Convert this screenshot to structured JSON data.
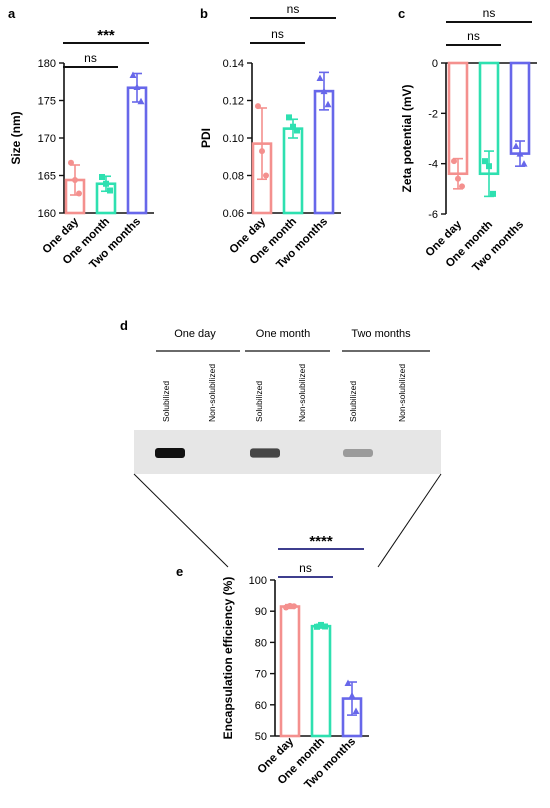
{
  "panels": {
    "a": "a",
    "b": "b",
    "c": "c",
    "d": "d",
    "e": "e"
  },
  "colors": {
    "one_day": "#f4908e",
    "one_month": "#2ee0b0",
    "two_months": "#6767ea",
    "sig_bar_e": "#3e3e8e"
  },
  "chart_data": [
    {
      "id": "a",
      "type": "bar",
      "categories": [
        "One day",
        "One month",
        "Two months"
      ],
      "values": [
        164.4,
        163.9,
        176.7
      ],
      "errors": [
        2.0,
        1.0,
        1.9
      ],
      "points": [
        [
          166.7,
          164.4,
          162.6
        ],
        [
          164.8,
          163.9,
          163.0
        ],
        [
          178.4,
          176.8,
          174.9
        ]
      ],
      "ylabel": "Size (nm)",
      "ylim": [
        160,
        180
      ],
      "yticks": [
        160,
        165,
        170,
        175,
        180
      ],
      "significance": [
        {
          "label": "ns",
          "from": 0,
          "to": 1,
          "bold": false
        },
        {
          "label": "***",
          "from": 0,
          "to": 2,
          "bold": true
        }
      ]
    },
    {
      "id": "b",
      "type": "bar",
      "categories": [
        "One day",
        "One month",
        "Two months"
      ],
      "values": [
        0.097,
        0.105,
        0.125
      ],
      "errors": [
        0.019,
        0.005,
        0.01
      ],
      "points": [
        [
          0.117,
          0.093,
          0.08
        ],
        [
          0.111,
          0.106,
          0.104
        ],
        [
          0.132,
          0.125,
          0.118
        ]
      ],
      "ylabel": "PDI",
      "ylim": [
        0.06,
        0.14
      ],
      "yticks": [
        0.06,
        0.08,
        0.1,
        0.12,
        0.14
      ],
      "significance": [
        {
          "label": "ns",
          "from": 0,
          "to": 1,
          "bold": false
        },
        {
          "label": "ns",
          "from": 0,
          "to": 2,
          "bold": false
        }
      ]
    },
    {
      "id": "c",
      "type": "bar",
      "categories": [
        "One day",
        "One month",
        "Two months"
      ],
      "values": [
        -4.4,
        -4.4,
        -3.6
      ],
      "errors": [
        0.6,
        0.9,
        0.5
      ],
      "points": [
        [
          -3.9,
          -4.6,
          -4.9
        ],
        [
          -3.9,
          -4.1,
          -5.2
        ],
        [
          -3.3,
          -3.6,
          -4.0
        ]
      ],
      "ylabel": "Zeta potential (mV)",
      "ylim": [
        -6,
        0
      ],
      "yticks": [
        0,
        -2,
        -4,
        -6
      ],
      "significance": [
        {
          "label": "ns",
          "from": 0,
          "to": 1,
          "bold": false
        },
        {
          "label": "ns",
          "from": 0,
          "to": 2,
          "bold": false
        }
      ]
    },
    {
      "id": "e",
      "type": "bar",
      "categories": [
        "One day",
        "One month",
        "Two months"
      ],
      "values": [
        91.5,
        85.2,
        62.0
      ],
      "errors": [
        0.6,
        0.6,
        5.3
      ],
      "points": [
        [
          91.2,
          91.7,
          91.6
        ],
        [
          85.0,
          85.6,
          85.1
        ],
        [
          67.0,
          63.0,
          58.0
        ]
      ],
      "ylabel": "Encapsulation efficiency (%)",
      "ylim": [
        50,
        100
      ],
      "yticks": [
        50,
        60,
        70,
        80,
        90,
        100
      ],
      "significance": [
        {
          "label": "ns",
          "from": 0,
          "to": 1,
          "bold": false
        },
        {
          "label": "****",
          "from": 0,
          "to": 2,
          "bold": true
        }
      ]
    }
  ],
  "gel": {
    "groups": [
      "One day",
      "One month",
      "Two months"
    ],
    "lanes": [
      "Solubilized",
      "Non-solubilized",
      "Solubilized",
      "Non-solubilized",
      "Solubilized",
      "Non-solubilized"
    ],
    "band_intensity": [
      1.0,
      0.0,
      0.75,
      0.0,
      0.35,
      0.0
    ]
  }
}
